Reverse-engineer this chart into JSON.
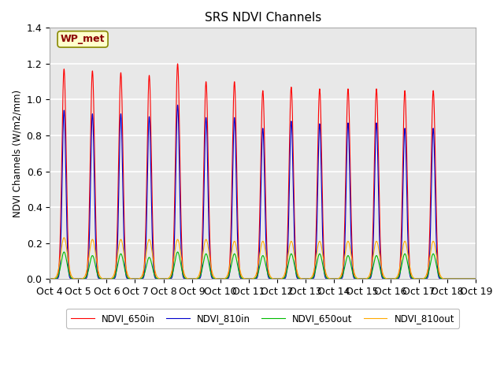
{
  "title": "SRS NDVI Channels",
  "ylabel": "NDVI Channels (W/m2/mm)",
  "annotation": "WP_met",
  "ylim": [
    0,
    1.4
  ],
  "fig_facecolor": "#ffffff",
  "plot_bg_color": "#e8e8e8",
  "colors": {
    "NDVI_650in": "#ff0000",
    "NDVI_810in": "#0000cc",
    "NDVI_650out": "#00bb00",
    "NDVI_810out": "#ffaa00"
  },
  "x_tick_labels": [
    "Oct 4",
    "Oct 5",
    "Oct 6",
    "Oct 7",
    "Oct 8",
    "Oct 9",
    "Oct 10",
    "Oct 11",
    "Oct 12",
    "Oct 13",
    "Oct 14",
    "Oct 15",
    "Oct 16",
    "Oct 17",
    "Oct 18",
    "Oct 19"
  ],
  "peaks_650in": [
    1.17,
    1.16,
    1.15,
    1.135,
    1.2,
    1.1,
    1.1,
    1.05,
    1.07,
    1.06,
    1.06,
    1.06,
    1.05,
    1.05
  ],
  "peaks_810in": [
    0.94,
    0.92,
    0.92,
    0.905,
    0.97,
    0.9,
    0.9,
    0.84,
    0.88,
    0.865,
    0.87,
    0.87,
    0.84,
    0.84
  ],
  "peaks_650out": [
    0.15,
    0.13,
    0.14,
    0.12,
    0.15,
    0.14,
    0.14,
    0.13,
    0.14,
    0.14,
    0.13,
    0.13,
    0.14,
    0.14
  ],
  "peaks_810out": [
    0.23,
    0.22,
    0.22,
    0.22,
    0.22,
    0.22,
    0.21,
    0.21,
    0.21,
    0.21,
    0.21,
    0.21,
    0.21,
    0.21
  ]
}
